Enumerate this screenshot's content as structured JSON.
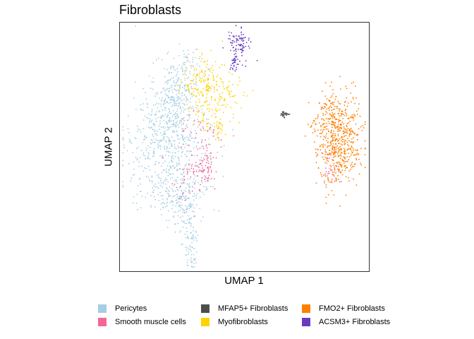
{
  "chart_data": {
    "type": "scatter",
    "title": "Fibroblasts",
    "xlabel": "UMAP 1",
    "ylabel": "UMAP 2",
    "axis_ticks": false,
    "grid": false,
    "legend": {
      "placement": "bottom",
      "entries": [
        {
          "name": "Pericytes",
          "color": "#a6cee3"
        },
        {
          "name": "Smooth muscle cells",
          "color": "#f5679b"
        },
        {
          "name": "MFAP5+ Fibroblasts",
          "color": "#4d4d4d"
        },
        {
          "name": "Myofibroblasts",
          "color": "#ffd200"
        },
        {
          "name": "FMO2+ Fibroblasts",
          "color": "#ff7f00"
        },
        {
          "name": "ACSM3+ Fibroblasts",
          "color": "#6a3bc2"
        }
      ]
    },
    "series": [
      {
        "name": "Pericytes",
        "color": "#a6cee3",
        "clusters": [
          [
            0.205,
            0.52,
            0.09,
            0.12,
            500
          ],
          [
            0.2,
            0.4,
            0.05,
            0.07,
            120
          ],
          [
            0.2,
            0.67,
            0.06,
            0.05,
            90
          ],
          [
            0.22,
            0.3,
            0.04,
            0.07,
            180
          ],
          [
            0.27,
            0.2,
            0.04,
            0.05,
            80
          ],
          [
            0.26,
            0.74,
            0.03,
            0.05,
            90
          ],
          [
            0.29,
            0.9,
            0.015,
            0.05,
            70
          ]
        ]
      },
      {
        "name": "Smooth muscle cells",
        "color": "#f5679b",
        "clusters": [
          [
            0.34,
            0.59,
            0.03,
            0.04,
            90
          ],
          [
            0.33,
            0.44,
            0.04,
            0.04,
            40
          ],
          [
            0.27,
            0.65,
            0.03,
            0.05,
            30
          ],
          [
            0.85,
            0.6,
            0.02,
            0.03,
            30
          ]
        ]
      },
      {
        "name": "MFAP5+ Fibroblasts",
        "color": "#4d4d4d",
        "clusters": [
          [
            0.66,
            0.37,
            0.01,
            0.006,
            30
          ]
        ]
      },
      {
        "name": "Myofibroblasts",
        "color": "#ffd200",
        "clusters": [
          [
            0.33,
            0.25,
            0.04,
            0.06,
            150
          ],
          [
            0.42,
            0.28,
            0.04,
            0.05,
            80
          ],
          [
            0.36,
            0.38,
            0.04,
            0.04,
            40
          ],
          [
            0.4,
            0.43,
            0.01,
            0.03,
            20
          ]
        ]
      },
      {
        "name": "FMO2+ Fibroblasts",
        "color": "#ff7f00",
        "clusters": [
          [
            0.88,
            0.48,
            0.045,
            0.09,
            550
          ],
          [
            0.85,
            0.36,
            0.02,
            0.03,
            50
          ],
          [
            0.78,
            0.41,
            0.015,
            0.02,
            15
          ]
        ]
      },
      {
        "name": "ACSM3+ Fibroblasts",
        "color": "#6a3bc2",
        "clusters": [
          [
            0.48,
            0.09,
            0.02,
            0.03,
            90
          ],
          [
            0.46,
            0.16,
            0.01,
            0.02,
            30
          ]
        ]
      }
    ]
  }
}
